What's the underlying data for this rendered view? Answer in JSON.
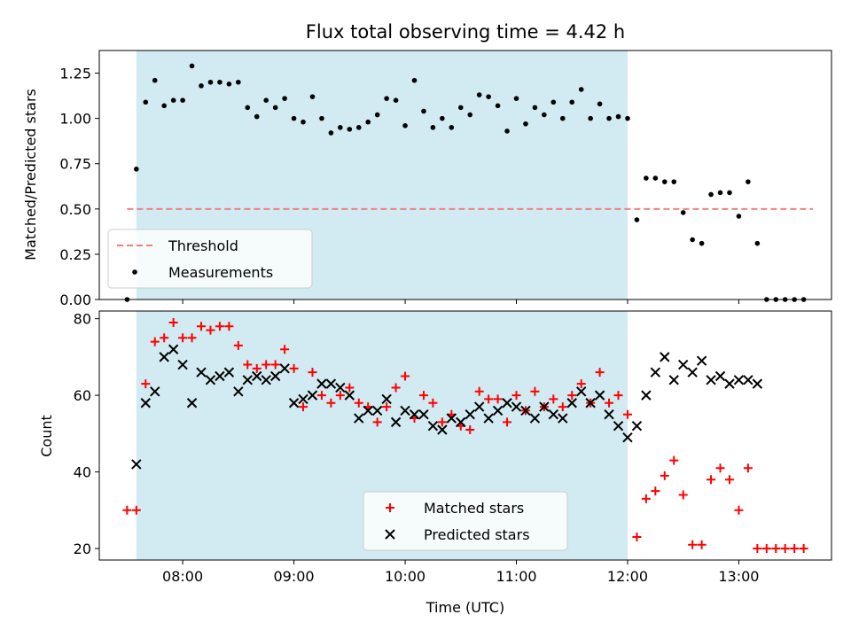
{
  "chart_data": [
    {
      "type": "scatter",
      "title": "Flux total observing time = 4.42 h",
      "xlabel": "",
      "ylabel": "Matched/Predicted stars",
      "ylim": [
        0,
        1.375
      ],
      "xlim": [
        "07:15",
        "13:50"
      ],
      "yticks": [
        0,
        0.25,
        0.5,
        0.75,
        1.0,
        1.25
      ],
      "ytick_labels": [
        "0.00",
        "0.25",
        "0.50",
        "0.75",
        "1.00",
        "1.25"
      ],
      "shaded_interval": [
        "07:35",
        "12:00"
      ],
      "shaded_color": "#add8e6",
      "threshold": {
        "name": "Threshold",
        "value": 0.5,
        "x_start": "07:30",
        "x_end": "13:40",
        "color": "#f08080"
      },
      "series": [
        {
          "name": "Measurements",
          "marker": "dot",
          "color": "#000000",
          "x": [
            "07:30",
            "07:35",
            "07:40",
            "07:45",
            "07:50",
            "07:55",
            "08:00",
            "08:05",
            "08:10",
            "08:15",
            "08:20",
            "08:25",
            "08:30",
            "08:35",
            "08:40",
            "08:45",
            "08:50",
            "08:55",
            "09:00",
            "09:05",
            "09:10",
            "09:15",
            "09:20",
            "09:25",
            "09:30",
            "09:35",
            "09:40",
            "09:45",
            "09:50",
            "09:55",
            "10:00",
            "10:05",
            "10:10",
            "10:15",
            "10:20",
            "10:25",
            "10:30",
            "10:35",
            "10:40",
            "10:45",
            "10:50",
            "10:55",
            "11:00",
            "11:05",
            "11:10",
            "11:15",
            "11:20",
            "11:25",
            "11:30",
            "11:35",
            "11:40",
            "11:45",
            "11:50",
            "11:55",
            "12:00",
            "12:05",
            "12:10",
            "12:15",
            "12:20",
            "12:25",
            "12:30",
            "12:35",
            "12:40",
            "12:45",
            "12:50",
            "12:55",
            "13:00",
            "13:05",
            "13:10",
            "13:15",
            "13:20",
            "13:25",
            "13:30",
            "13:35"
          ],
          "y": [
            0.0,
            0.72,
            1.09,
            1.21,
            1.07,
            1.1,
            1.1,
            1.29,
            1.18,
            1.2,
            1.2,
            1.19,
            1.2,
            1.06,
            1.01,
            1.1,
            1.06,
            1.11,
            1.0,
            0.98,
            1.12,
            1.0,
            0.92,
            0.95,
            0.94,
            0.95,
            0.98,
            1.02,
            1.11,
            1.1,
            0.96,
            1.21,
            1.04,
            0.95,
            1.0,
            0.95,
            1.06,
            1.02,
            1.13,
            1.12,
            1.07,
            0.93,
            1.11,
            0.97,
            1.06,
            1.02,
            1.09,
            1.0,
            1.09,
            1.16,
            1.0,
            1.08,
            1.0,
            1.01,
            1.0,
            0.44,
            0.67,
            0.67,
            0.65,
            0.65,
            0.48,
            0.33,
            0.31,
            0.58,
            0.59,
            0.59,
            0.46,
            0.65,
            0.31,
            0.0,
            0.0,
            0.0,
            0.0,
            0.0
          ]
        }
      ],
      "legend": {
        "placement": "lower-left",
        "entries": [
          "Threshold",
          "Measurements"
        ]
      }
    },
    {
      "type": "scatter",
      "title": "",
      "xlabel": "Time (UTC)",
      "ylabel": "Count",
      "ylim": [
        17,
        82
      ],
      "xlim": [
        "07:15",
        "13:50"
      ],
      "yticks": [
        20,
        40,
        60,
        80
      ],
      "ytick_labels": [
        "20",
        "40",
        "60",
        "80"
      ],
      "xticks": [
        "08:00",
        "09:00",
        "10:00",
        "11:00",
        "12:00",
        "13:00"
      ],
      "xtick_labels": [
        "08:00",
        "09:00",
        "10:00",
        "11:00",
        "12:00",
        "13:00"
      ],
      "shaded_interval": [
        "07:35",
        "12:00"
      ],
      "shaded_color": "#add8e6",
      "series": [
        {
          "name": "Matched stars",
          "marker": "plus",
          "color": "#ff0000",
          "x": [
            "07:30",
            "07:35",
            "07:40",
            "07:45",
            "07:50",
            "07:55",
            "08:00",
            "08:05",
            "08:10",
            "08:15",
            "08:20",
            "08:25",
            "08:30",
            "08:35",
            "08:40",
            "08:45",
            "08:50",
            "08:55",
            "09:00",
            "09:05",
            "09:10",
            "09:15",
            "09:20",
            "09:25",
            "09:30",
            "09:35",
            "09:40",
            "09:45",
            "09:50",
            "09:55",
            "10:00",
            "10:05",
            "10:10",
            "10:15",
            "10:20",
            "10:25",
            "10:30",
            "10:35",
            "10:40",
            "10:45",
            "10:50",
            "10:55",
            "11:00",
            "11:05",
            "11:10",
            "11:15",
            "11:20",
            "11:25",
            "11:30",
            "11:35",
            "11:40",
            "11:45",
            "11:50",
            "11:55",
            "12:00",
            "12:05",
            "12:10",
            "12:15",
            "12:20",
            "12:25",
            "12:30",
            "12:35",
            "12:40",
            "12:45",
            "12:50",
            "12:55",
            "13:00",
            "13:05",
            "13:10",
            "13:15",
            "13:20",
            "13:25",
            "13:30",
            "13:35"
          ],
          "y": [
            30,
            30,
            63,
            74,
            75,
            79,
            75,
            75,
            78,
            77,
            78,
            78,
            73,
            68,
            67,
            68,
            68,
            72,
            67,
            57,
            66,
            60,
            58,
            60,
            62,
            58,
            57,
            53,
            57,
            62,
            65,
            54,
            60,
            58,
            53,
            55,
            52,
            51,
            61,
            59,
            59,
            53,
            60,
            56,
            61,
            57,
            59,
            57,
            60,
            63,
            58,
            66,
            58,
            60,
            55,
            23,
            33,
            35,
            39,
            43,
            34,
            21,
            21,
            38,
            41,
            38,
            30,
            41,
            20,
            20,
            20,
            20,
            20,
            20
          ]
        },
        {
          "name": "Predicted stars",
          "marker": "x",
          "color": "#000000",
          "x": [
            "07:35",
            "07:40",
            "07:45",
            "07:50",
            "07:55",
            "08:00",
            "08:05",
            "08:10",
            "08:15",
            "08:20",
            "08:25",
            "08:30",
            "08:35",
            "08:40",
            "08:45",
            "08:50",
            "08:55",
            "09:00",
            "09:05",
            "09:10",
            "09:15",
            "09:20",
            "09:25",
            "09:30",
            "09:35",
            "09:40",
            "09:45",
            "09:50",
            "09:55",
            "10:00",
            "10:05",
            "10:10",
            "10:15",
            "10:20",
            "10:25",
            "10:30",
            "10:35",
            "10:40",
            "10:45",
            "10:50",
            "10:55",
            "11:00",
            "11:05",
            "11:10",
            "11:15",
            "11:20",
            "11:25",
            "11:30",
            "11:35",
            "11:40",
            "11:45",
            "11:50",
            "11:55",
            "12:00",
            "12:05",
            "12:10",
            "12:15",
            "12:20",
            "12:25",
            "12:30",
            "12:35",
            "12:40",
            "12:45",
            "12:50",
            "12:55",
            "13:00",
            "13:05",
            "13:10"
          ],
          "y": [
            42,
            58,
            61,
            70,
            72,
            68,
            58,
            66,
            64,
            65,
            66,
            61,
            64,
            65,
            64,
            65,
            67,
            58,
            59,
            60,
            63,
            63,
            62,
            60,
            54,
            56,
            56,
            59,
            53,
            56,
            55,
            55,
            52,
            51,
            54,
            53,
            55,
            57,
            54,
            56,
            58,
            57,
            56,
            54,
            57,
            55,
            54,
            58,
            61,
            58,
            60,
            55,
            52,
            49,
            52,
            60,
            66,
            70,
            64,
            68,
            66,
            69,
            64,
            65,
            63,
            64,
            64,
            63
          ]
        }
      ],
      "legend": {
        "placement": "lower-center",
        "entries": [
          "Matched stars",
          "Predicted stars"
        ]
      }
    }
  ]
}
